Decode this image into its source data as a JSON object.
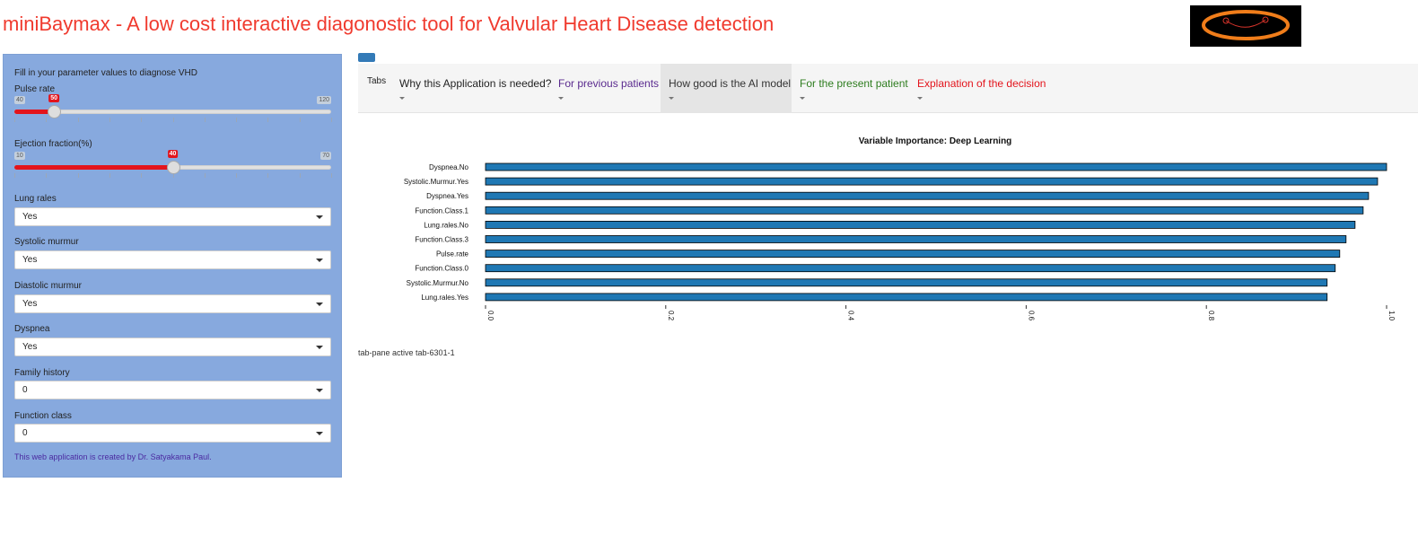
{
  "app": {
    "title": "miniBaymax - A low cost interactive diagonostic tool for Valvular Heart Disease detection"
  },
  "logo": {
    "icon": "orange-ellipse-face-logo",
    "ring_color": "#f07d1a",
    "line_color": "#d9342b"
  },
  "sidebar": {
    "intro": "Fill in your parameter values to diagnose VHD",
    "pulse": {
      "label": "Pulse rate",
      "min": "40",
      "max": "120",
      "value": "50",
      "fraction": 0.125
    },
    "ef": {
      "label": "Ejection fraction(%)",
      "min": "10",
      "max": "70",
      "value": "40",
      "fraction": 0.5
    },
    "lung": {
      "label": "Lung rales",
      "value": "Yes"
    },
    "systolic": {
      "label": "Systolic murmur",
      "value": "Yes"
    },
    "diastolic": {
      "label": "Diastolic murmur",
      "value": "Yes"
    },
    "dyspnea": {
      "label": "Dyspnea",
      "value": "Yes"
    },
    "family": {
      "label": "Family history",
      "value": "0"
    },
    "function": {
      "label": "Function class",
      "value": "0"
    },
    "credit": "This web application is created by Dr. Satyakama Paul.",
    "background_color": "#87a9de"
  },
  "tabs": {
    "label": "Tabs",
    "items": [
      {
        "label": "Why this Application is needed?",
        "color": "#222222"
      },
      {
        "label": "For previous patients",
        "color": "#5a2a8e"
      },
      {
        "label": "How good is the AI model",
        "color": "#333333"
      },
      {
        "label": "For the present patient",
        "color": "#2e7d1f"
      },
      {
        "label": "Explanation of the decision",
        "color": "#e3141c"
      }
    ],
    "active_index": 2
  },
  "chart_data": {
    "type": "bar",
    "orientation": "horizontal",
    "title": "Variable Importance: Deep Learning",
    "categories": [
      "Dyspnea.No",
      "Systolic.Murmur.Yes",
      "Dyspnea.Yes",
      "Function.Class.1",
      "Lung.rales.No",
      "Function.Class.3",
      "Pulse.rate",
      "Function.Class.0",
      "Systolic.Murmur.No",
      "Lung.rales.Yes"
    ],
    "values": [
      1.0,
      0.99,
      0.98,
      0.974,
      0.965,
      0.955,
      0.948,
      0.943,
      0.934,
      0.934
    ],
    "xlim": [
      0,
      1
    ],
    "x_ticks": [
      "0.0",
      "0.2",
      "0.4",
      "0.6",
      "0.8",
      "1.0"
    ],
    "bar_color": "#1f78b4",
    "xlabel": "",
    "ylabel": "",
    "grid": false
  },
  "pane": {
    "text": "tab-pane active tab-6301-1"
  }
}
